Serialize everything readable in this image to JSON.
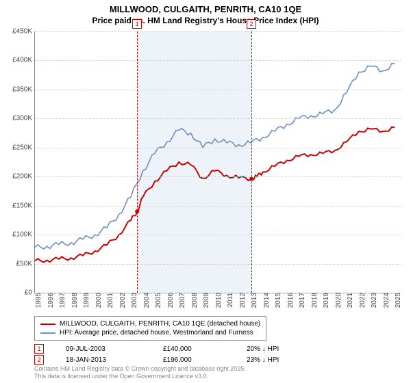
{
  "title": {
    "line1": "MILLWOOD, CULGAITH, PENRITH, CA10 1QE",
    "line2": "Price paid vs. HM Land Registry's House Price Index (HPI)",
    "fontsize1": 13,
    "fontsize2": 12
  },
  "chart": {
    "type": "line",
    "background_color": "#ffffff",
    "grid_color": "#cccccc",
    "axis_color": "#888888",
    "xlim": [
      1995,
      2025.5
    ],
    "ylim": [
      0,
      450000
    ],
    "y_ticks": [
      0,
      50000,
      100000,
      150000,
      200000,
      250000,
      300000,
      350000,
      400000,
      450000
    ],
    "y_tick_labels": [
      "£0",
      "£50K",
      "£100K",
      "£150K",
      "£200K",
      "£250K",
      "£300K",
      "£350K",
      "£400K",
      "£450K"
    ],
    "x_ticks": [
      1995,
      1996,
      1997,
      1998,
      1999,
      2000,
      2001,
      2002,
      2003,
      2004,
      2005,
      2006,
      2007,
      2008,
      2009,
      2010,
      2011,
      2012,
      2013,
      2014,
      2015,
      2016,
      2017,
      2018,
      2019,
      2020,
      2021,
      2022,
      2023,
      2024,
      2025
    ],
    "label_fontsize": 10,
    "shaded_band": {
      "x_start": 2003.52,
      "x_end": 2013.05,
      "color": "#e8eef7"
    },
    "markers": [
      {
        "n": "1",
        "label": "1",
        "x": 2003.52
      },
      {
        "n": "2",
        "label": "2",
        "x": 2013.05
      }
    ],
    "series": [
      {
        "id": "price_paid",
        "label": "MILLWOOD, CULGAITH, PENRITH, CA10 1QE (detached house)",
        "color": "#cc0000",
        "line_width": 2,
        "data": [
          [
            1995,
            55000
          ],
          [
            1996,
            56000
          ],
          [
            1997,
            58000
          ],
          [
            1998,
            60000
          ],
          [
            1999,
            64000
          ],
          [
            2000,
            72000
          ],
          [
            2001,
            82000
          ],
          [
            2002,
            100000
          ],
          [
            2003,
            125000
          ],
          [
            2003.52,
            140000
          ],
          [
            2004,
            165000
          ],
          [
            2005,
            192000
          ],
          [
            2006,
            210000
          ],
          [
            2007,
            225000
          ],
          [
            2008,
            220000
          ],
          [
            2009,
            197000
          ],
          [
            2010,
            210000
          ],
          [
            2011,
            202000
          ],
          [
            2012,
            198000
          ],
          [
            2013.05,
            196000
          ],
          [
            2013.5,
            200000
          ],
          [
            2014,
            208000
          ],
          [
            2015,
            218000
          ],
          [
            2016,
            228000
          ],
          [
            2017,
            235000
          ],
          [
            2018,
            238000
          ],
          [
            2019,
            240000
          ],
          [
            2020,
            245000
          ],
          [
            2021,
            260000
          ],
          [
            2022,
            278000
          ],
          [
            2023,
            282000
          ],
          [
            2024,
            278000
          ],
          [
            2025,
            285000
          ]
        ]
      },
      {
        "id": "hpi",
        "label": "HPI: Average price, detached house, Westmorland and Furness",
        "color": "#6a8fc5",
        "line_width": 1.6,
        "data": [
          [
            1995,
            78000
          ],
          [
            1996,
            80000
          ],
          [
            1997,
            83000
          ],
          [
            1998,
            86000
          ],
          [
            1999,
            92000
          ],
          [
            2000,
            100000
          ],
          [
            2001,
            112000
          ],
          [
            2002,
            135000
          ],
          [
            2003,
            165000
          ],
          [
            2004,
            210000
          ],
          [
            2005,
            240000
          ],
          [
            2006,
            260000
          ],
          [
            2007,
            280000
          ],
          [
            2008,
            275000
          ],
          [
            2009,
            250000
          ],
          [
            2010,
            265000
          ],
          [
            2011,
            258000
          ],
          [
            2012,
            255000
          ],
          [
            2013,
            258000
          ],
          [
            2014,
            268000
          ],
          [
            2015,
            278000
          ],
          [
            2016,
            290000
          ],
          [
            2017,
            300000
          ],
          [
            2018,
            305000
          ],
          [
            2019,
            308000
          ],
          [
            2020,
            315000
          ],
          [
            2021,
            345000
          ],
          [
            2022,
            380000
          ],
          [
            2023,
            390000
          ],
          [
            2024,
            382000
          ],
          [
            2025,
            395000
          ]
        ]
      }
    ]
  },
  "legend": {
    "item1": "MILLWOOD, CULGAITH, PENRITH, CA10 1QE (detached house)",
    "item2": "HPI: Average price, detached house, Westmorland and Furness",
    "color1": "#cc0000",
    "color2": "#6a8fc5"
  },
  "sales": [
    {
      "n": "1",
      "date": "09-JUL-2003",
      "price": "£140,000",
      "diff": "20% ↓ HPI"
    },
    {
      "n": "2",
      "date": "18-JAN-2013",
      "price": "£196,000",
      "diff": "23% ↓ HPI"
    }
  ],
  "footer": {
    "line1": "Contains HM Land Registry data © Crown copyright and database right 2025.",
    "line2": "This data is licensed under the Open Government Licence v3.0."
  }
}
